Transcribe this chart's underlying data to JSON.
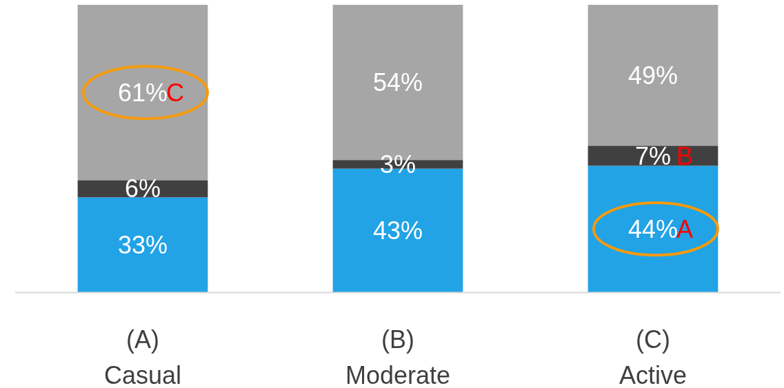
{
  "chart_data": {
    "type": "bar",
    "stacked": true,
    "categories": [
      "(A)\nCasual",
      "(B)\nModerate",
      "(C)\nActive"
    ],
    "series": [
      {
        "color": "#21a3e6",
        "values": [
          33,
          43,
          44
        ],
        "value_labels": [
          "33%",
          "43%",
          "44%"
        ]
      },
      {
        "color": "#404040",
        "values": [
          6,
          3,
          7
        ],
        "value_labels": [
          "6%",
          "3%",
          "7%"
        ]
      },
      {
        "color": "#a6a6a6",
        "values": [
          61,
          54,
          49
        ],
        "value_labels": [
          "61%",
          "54%",
          "49%"
        ]
      }
    ],
    "ylim": [
      0,
      100
    ],
    "tick_labels": "x",
    "annotations": [
      "C",
      "B",
      "A"
    ]
  }
}
